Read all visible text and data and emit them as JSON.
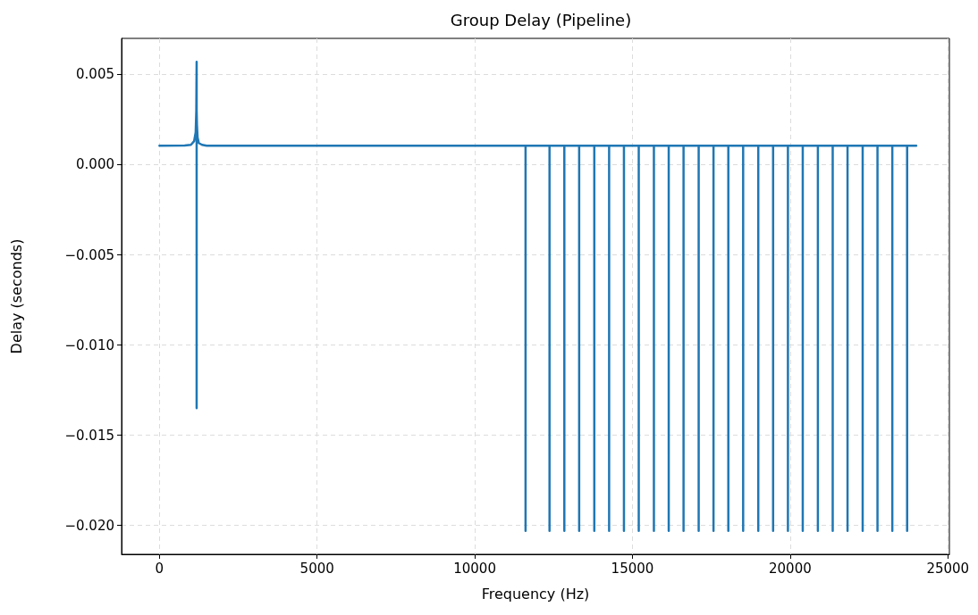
{
  "chart_data": {
    "type": "line",
    "title": "Group Delay (Pipeline)",
    "xlabel": "Frequency (Hz)",
    "ylabel": "Delay (seconds)",
    "xlim": [
      -1200,
      25050
    ],
    "xticks": [
      0,
      5000,
      10000,
      15000,
      20000,
      25000
    ],
    "ylim": [
      -0.0216,
      0.007
    ],
    "yticks": [
      {
        "value": -0.02,
        "label": "−0.020"
      },
      {
        "value": -0.015,
        "label": "−0.015"
      },
      {
        "value": -0.01,
        "label": "−0.010"
      },
      {
        "value": -0.005,
        "label": "−0.005"
      },
      {
        "value": 0,
        "label": "0.000"
      },
      {
        "value": 0.005,
        "label": "0.005"
      }
    ],
    "grid": true,
    "marker": "none",
    "line_style": "solid",
    "series": [
      {
        "color": "#1f77b4",
        "x": [
          0,
          800,
          1000,
          1100,
          1150,
          1170,
          1180,
          1180,
          1180,
          1190,
          1210,
          1250,
          1350,
          1500,
          11610,
          11610,
          11610,
          12370,
          12370,
          12370,
          12840,
          12840,
          12840,
          13310,
          13310,
          13310,
          13790,
          13790,
          13790,
          14260,
          14260,
          14260,
          14730,
          14730,
          14730,
          15200,
          15200,
          15200,
          15680,
          15680,
          15680,
          16150,
          16150,
          16150,
          16620,
          16620,
          16620,
          17100,
          17100,
          17100,
          17570,
          17570,
          17570,
          18040,
          18040,
          18040,
          18510,
          18510,
          18510,
          18990,
          18990,
          18990,
          19460,
          19460,
          19460,
          19930,
          19930,
          19930,
          20400,
          20400,
          20400,
          20880,
          20880,
          20880,
          21350,
          21350,
          21350,
          21820,
          21820,
          21820,
          22300,
          22300,
          22300,
          22770,
          22770,
          22770,
          23240,
          23240,
          23240,
          23710,
          23710,
          23710,
          24000
        ],
        "values": [
          0.00105,
          0.00106,
          0.0011,
          0.0013,
          0.0018,
          0.003,
          0.0057,
          -0.0135,
          0.003,
          0.0022,
          0.0015,
          0.0012,
          0.0011,
          0.00105,
          0.00105,
          -0.0203,
          0.00105,
          0.00105,
          -0.0203,
          0.00105,
          0.00105,
          -0.0203,
          0.00105,
          0.00105,
          -0.0203,
          0.00105,
          0.00105,
          -0.0203,
          0.00105,
          0.00105,
          -0.0203,
          0.00105,
          0.00105,
          -0.0203,
          0.00105,
          0.00105,
          -0.0203,
          0.00105,
          0.00105,
          -0.0203,
          0.00105,
          0.00105,
          -0.0203,
          0.00105,
          0.00105,
          -0.0203,
          0.00105,
          0.00105,
          -0.0203,
          0.00105,
          0.00105,
          -0.0203,
          0.00105,
          0.00105,
          -0.0203,
          0.00105,
          0.00105,
          -0.0203,
          0.00105,
          0.00105,
          -0.0203,
          0.00105,
          0.00105,
          -0.0203,
          0.00105,
          0.00105,
          -0.0203,
          0.00105,
          0.00105,
          -0.0203,
          0.00105,
          0.00105,
          -0.0203,
          0.00105,
          0.00105,
          -0.0203,
          0.00105,
          0.00105,
          -0.0203,
          0.00105,
          0.00105,
          -0.0203,
          0.00105,
          0.00105,
          -0.0203,
          0.00105,
          0.00105,
          -0.0203,
          0.00105,
          0.00105,
          -0.0203,
          0.00105,
          0.00105
        ]
      }
    ]
  }
}
